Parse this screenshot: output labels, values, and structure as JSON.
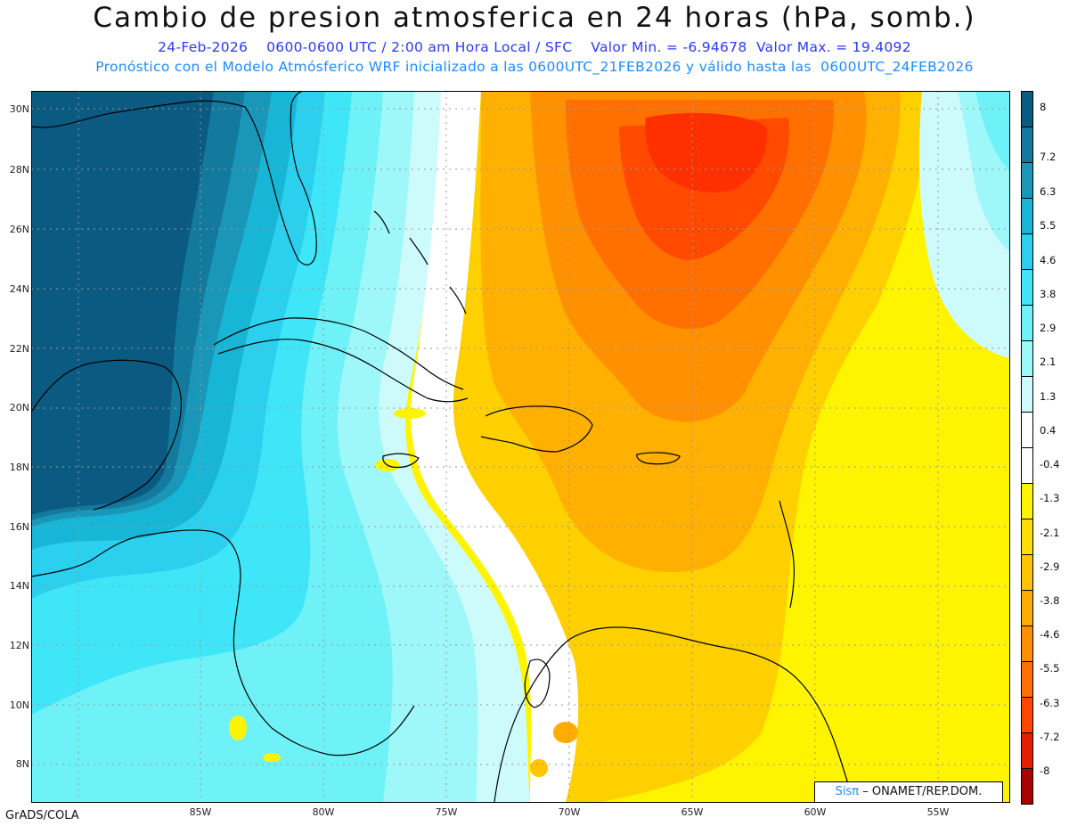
{
  "title": "Cambio de presion atmosferica en 24 horas (hPa, somb.)",
  "subtitle_line1": "24-Feb-2026    0600-0600 UTC / 2:00 am Hora Local / SFC    Valor Min. = -6.94678  Valor Max. = 19.4092",
  "subtitle_line2": "Pronóstico con el Modelo Atmósferico WRF inicializado a las 0600UTC_21FEB2026 y válido hasta las  0600UTC_24FEB2026",
  "footer_left": "GrADS/COLA",
  "logo": {
    "brand": "Sisπ",
    "text": "– ONAMET/REP.DOM."
  },
  "lat_labels": [
    "30N",
    "28N",
    "26N",
    "24N",
    "22N",
    "20N",
    "18N",
    "16N",
    "14N",
    "12N",
    "10N",
    "8N"
  ],
  "lon_labels": [
    "85W",
    "80W",
    "75W",
    "70W",
    "65W",
    "60W",
    "55W"
  ],
  "colorbar": {
    "labels": [
      "8",
      "7.2",
      "6.3",
      "5.5",
      "4.6",
      "3.8",
      "2.9",
      "2.1",
      "1.3",
      "0.4",
      "-0.4",
      "-1.3",
      "-2.1",
      "-2.9",
      "-3.8",
      "-4.6",
      "-5.5",
      "-6.3",
      "-7.2",
      "-8"
    ],
    "colors": [
      "#0b5a82",
      "#137a9e",
      "#1a97b8",
      "#18b6d6",
      "#2bd0ee",
      "#3fe6f8",
      "#6ef2f7",
      "#9ef7f8",
      "#cdfbfb",
      "#ffffff",
      "#ffffff",
      "#fff400",
      "#ffdf00",
      "#ffc400",
      "#ffab00",
      "#ff8f00",
      "#ff6e00",
      "#ff4600",
      "#e51e00",
      "#a80000"
    ]
  },
  "colors": {
    "title_line1": "#2a39ff",
    "title_line2": "#1c8cff",
    "high_rise": "#0b5a82",
    "fall_max": "#ff3a00"
  }
}
